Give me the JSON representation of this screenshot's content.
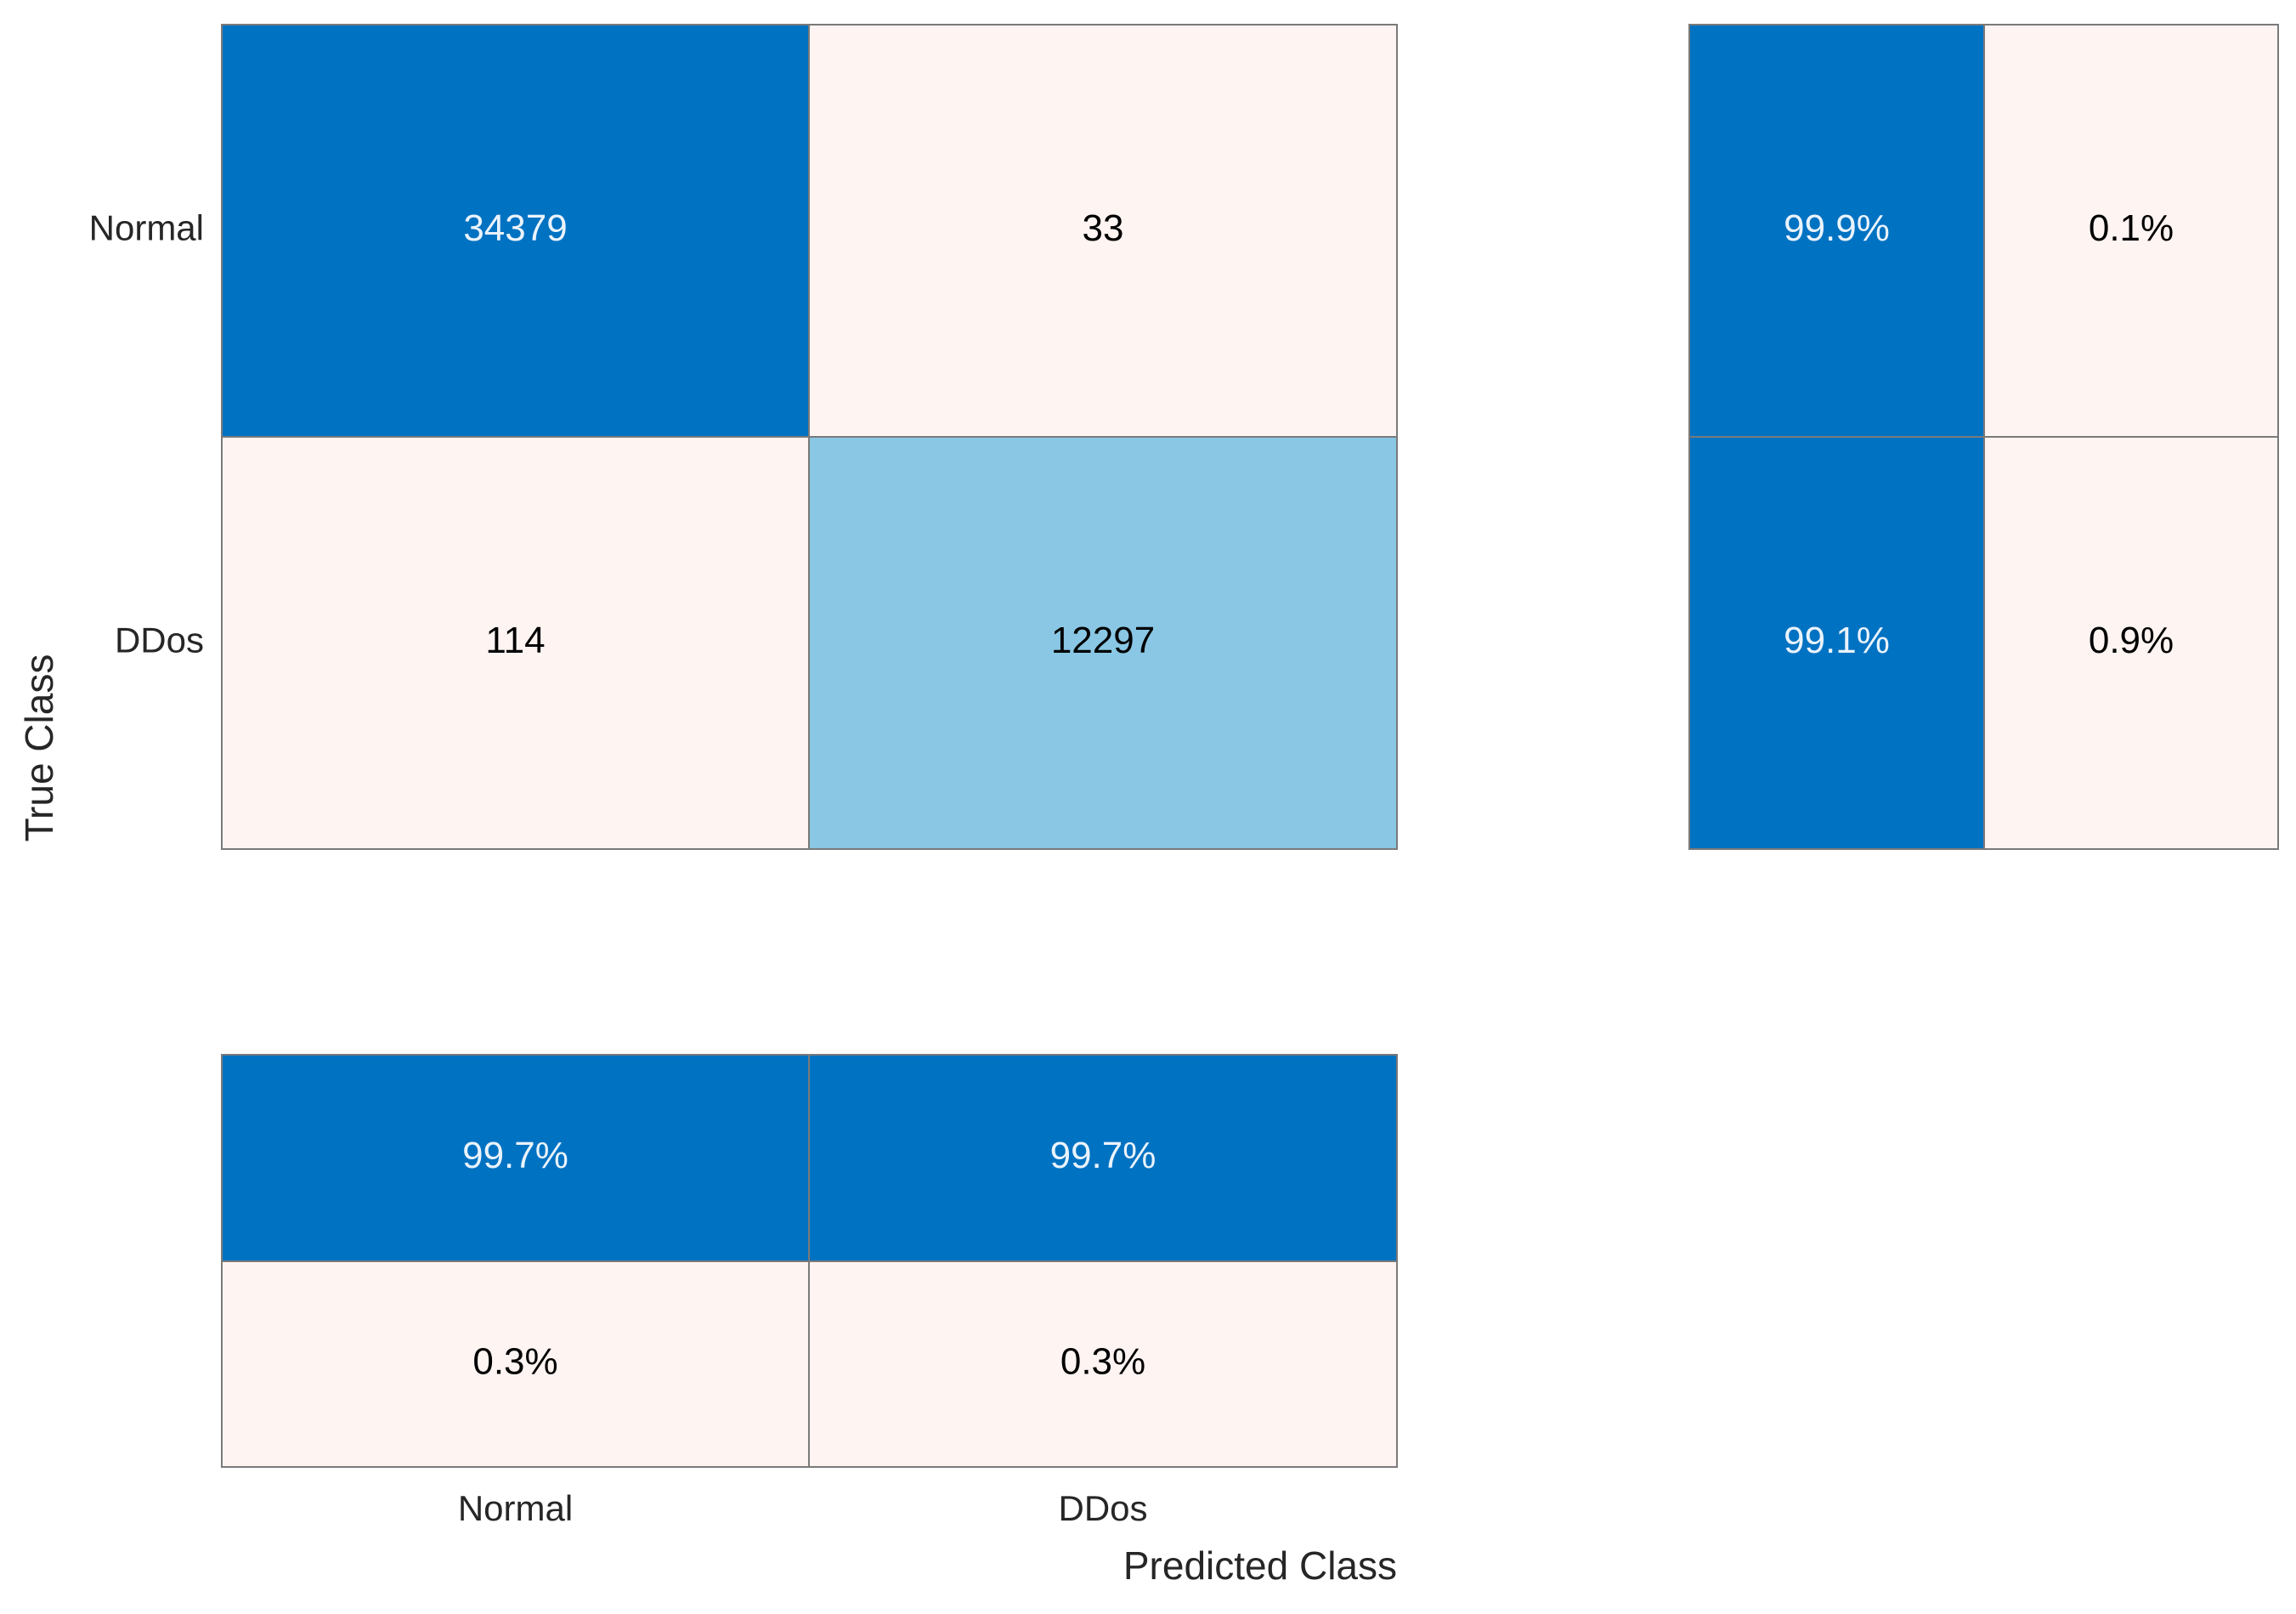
{
  "chart_data": {
    "type": "heatmap",
    "classes": [
      "Normal",
      "DDos"
    ],
    "xlabel": "Predicted Class",
    "ylabel": "True Class",
    "confusion_matrix": {
      "rows": [
        "Normal",
        "DDos"
      ],
      "cols": [
        "Normal",
        "DDos"
      ],
      "values": [
        [
          34379,
          33
        ],
        [
          114,
          12297
        ]
      ]
    },
    "row_summary": {
      "values": [
        [
          "99.9%",
          "0.1%"
        ],
        [
          "99.1%",
          "0.9%"
        ]
      ]
    },
    "column_summary": {
      "values": [
        [
          "99.7%",
          "99.7%"
        ],
        [
          "0.3%",
          "0.3%"
        ]
      ]
    },
    "colors": {
      "high": "#0072C2",
      "medium": "#89C7E4",
      "low": "#FEF4F2",
      "border": "#7a7a7a",
      "text_on_dark": "#EAF3FB",
      "text_on_light": "#000000"
    }
  }
}
